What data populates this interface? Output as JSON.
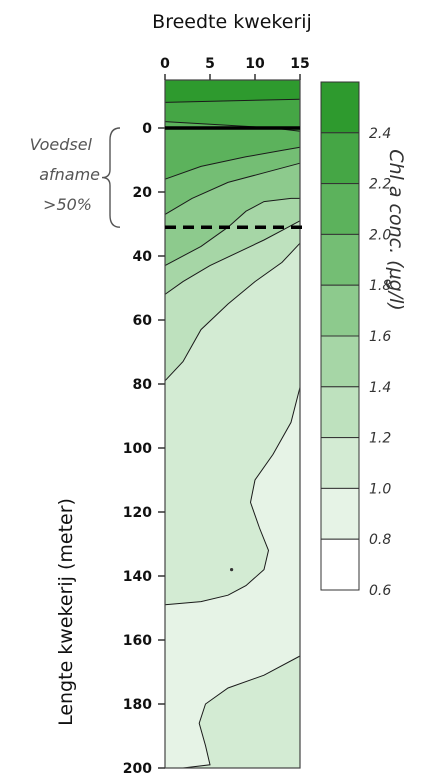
{
  "chart_data": {
    "type": "heatmap",
    "title": "Breedte kwekerij",
    "xlabel": "Breedte kwekerij",
    "ylabel": "Lengte kwekerij  (meter)",
    "x_ticks": [
      0,
      5,
      10,
      15
    ],
    "xlim": [
      0,
      15
    ],
    "y_ticks": [
      0,
      20,
      40,
      60,
      80,
      100,
      120,
      140,
      160,
      180,
      200
    ],
    "ylim": [
      -15,
      200
    ],
    "colorbar": {
      "label": "Chl a conc. (µg/l)",
      "ticks": [
        "2.4",
        "2.2",
        "2.0",
        "1.8",
        "1.6",
        "1.4",
        "1.2",
        "1.0",
        "0.8",
        "0.6"
      ],
      "levels": [
        0.6,
        0.8,
        1.0,
        1.2,
        1.4,
        1.6,
        1.8,
        2.0,
        2.2,
        2.4,
        2.6
      ],
      "colors": [
        "#ffffff",
        "#e6f3e6",
        "#d3ebd3",
        "#bee1be",
        "#a6d6a6",
        "#8dca8d",
        "#74be74",
        "#5cb25c",
        "#45a645",
        "#2e9a2e"
      ]
    },
    "annotation": {
      "lines": [
        "Voedsel",
        "afname",
        ">50%"
      ],
      "range": [
        0,
        31
      ]
    },
    "reference_lines": [
      {
        "y": 0,
        "style": "solid"
      },
      {
        "y": 31,
        "style": "dashed"
      }
    ],
    "zones": [
      {
        "level_index": 9,
        "bottom": [
          [
            0,
            -8
          ],
          [
            15,
            -9
          ]
        ]
      },
      {
        "level_index": 8,
        "bottom": [
          [
            0,
            -2
          ],
          [
            6,
            -1
          ],
          [
            12,
            0
          ],
          [
            15,
            1
          ]
        ]
      },
      {
        "level_index": 7,
        "bottom": [
          [
            0,
            16
          ],
          [
            4,
            12
          ],
          [
            9,
            9
          ],
          [
            13,
            7
          ],
          [
            15,
            6
          ]
        ]
      },
      {
        "level_index": 6,
        "bottom": [
          [
            0,
            27
          ],
          [
            3,
            22
          ],
          [
            7,
            17
          ],
          [
            11,
            14
          ],
          [
            15,
            11
          ]
        ]
      },
      {
        "level_index": 5,
        "bottom": [
          [
            0,
            43
          ],
          [
            4,
            37
          ],
          [
            7,
            31
          ],
          [
            9,
            26
          ],
          [
            11,
            23
          ],
          [
            14,
            22
          ],
          [
            15,
            22
          ]
        ]
      },
      {
        "level_index": 4,
        "bottom": [
          [
            0,
            52
          ],
          [
            2,
            48
          ],
          [
            5,
            43
          ],
          [
            8,
            39
          ],
          [
            11,
            35
          ],
          [
            13,
            32
          ],
          [
            15,
            29
          ]
        ]
      },
      {
        "level_index": 3,
        "bottom": [
          [
            0,
            79
          ],
          [
            2,
            73
          ],
          [
            4,
            63
          ],
          [
            7,
            55
          ],
          [
            10,
            48
          ],
          [
            13,
            42
          ],
          [
            15,
            36
          ]
        ]
      },
      {
        "level_index": 2,
        "bottom": [
          [
            0,
            149
          ],
          [
            4,
            148
          ],
          [
            7,
            146
          ],
          [
            9,
            143
          ],
          [
            11,
            138
          ],
          [
            11.5,
            132
          ],
          [
            10.5,
            125
          ],
          [
            9.5,
            117
          ],
          [
            10,
            110
          ],
          [
            12,
            102
          ],
          [
            14,
            92
          ],
          [
            15,
            81
          ]
        ]
      },
      {
        "level_index": 1,
        "bottom": [
          [
            0,
            200
          ],
          [
            2,
            200
          ],
          [
            5,
            199
          ],
          [
            4.5,
            193
          ],
          [
            3.8,
            186
          ],
          [
            4.5,
            180
          ],
          [
            7,
            175
          ],
          [
            11,
            171
          ],
          [
            15,
            165
          ]
        ]
      },
      {
        "level_index": 2,
        "bottom": [
          [
            0,
            200
          ],
          [
            15,
            200
          ]
        ]
      }
    ],
    "marker": {
      "x": 7.4,
      "y": 138
    }
  }
}
